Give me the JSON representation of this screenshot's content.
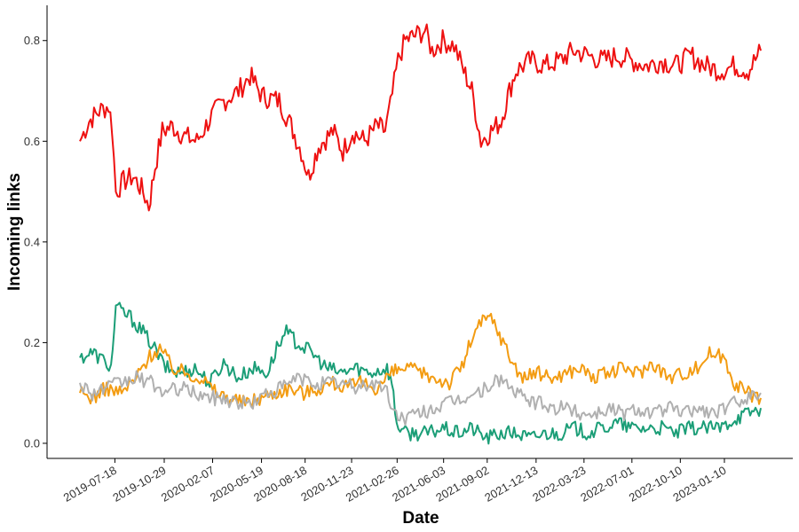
{
  "chart_data": {
    "type": "line",
    "title": "",
    "xlabel": "Date",
    "ylabel": "Incoming links",
    "ylim": [
      -0.03,
      0.87
    ],
    "x_start": "2019-05-06",
    "x_end": "2023-03-27",
    "yticks": [
      0.0,
      0.2,
      0.4,
      0.6,
      0.8
    ],
    "ytick_labels": [
      "0.0",
      "0.2",
      "0.4",
      "0.6",
      "0.8"
    ],
    "xticks": [
      "2019-07-18",
      "2019-10-29",
      "2020-02-07",
      "2020-05-19",
      "2020-08-18",
      "2020-11-23",
      "2021-02-26",
      "2021-06-03",
      "2021-09-02",
      "2021-12-13",
      "2022-03-23",
      "2022-07-01",
      "2022-10-10",
      "2023-01-10"
    ],
    "grid": false,
    "legend": "none",
    "series": [
      {
        "name": "red",
        "color": "#ee1111",
        "points": [
          [
            "2019-05-06",
            0.6
          ],
          [
            "2019-05-25",
            0.64
          ],
          [
            "2019-06-15",
            0.66
          ],
          [
            "2019-07-05",
            0.67
          ],
          [
            "2019-07-12",
            0.63
          ],
          [
            "2019-07-20",
            0.5
          ],
          [
            "2019-08-05",
            0.52
          ],
          [
            "2019-08-25",
            0.53
          ],
          [
            "2019-09-15",
            0.5
          ],
          [
            "2019-09-27",
            0.47
          ],
          [
            "2019-10-10",
            0.55
          ],
          [
            "2019-10-25",
            0.62
          ],
          [
            "2019-11-15",
            0.63
          ],
          [
            "2019-12-10",
            0.61
          ],
          [
            "2020-01-05",
            0.6
          ],
          [
            "2020-02-05",
            0.65
          ],
          [
            "2020-03-01",
            0.68
          ],
          [
            "2020-04-01",
            0.7
          ],
          [
            "2020-04-25",
            0.73
          ],
          [
            "2020-05-20",
            0.69
          ],
          [
            "2020-06-25",
            0.68
          ],
          [
            "2020-07-20",
            0.63
          ],
          [
            "2020-08-10",
            0.58
          ],
          [
            "2020-08-25",
            0.53
          ],
          [
            "2020-09-15",
            0.59
          ],
          [
            "2020-10-15",
            0.62
          ],
          [
            "2020-11-05",
            0.58
          ],
          [
            "2020-11-25",
            0.62
          ],
          [
            "2020-12-20",
            0.6
          ],
          [
            "2021-01-15",
            0.63
          ],
          [
            "2021-02-01",
            0.62
          ],
          [
            "2021-02-12",
            0.67
          ],
          [
            "2021-02-28",
            0.76
          ],
          [
            "2021-03-15",
            0.8
          ],
          [
            "2021-04-05",
            0.81
          ],
          [
            "2021-04-25",
            0.82
          ],
          [
            "2021-05-10",
            0.78
          ],
          [
            "2021-06-01",
            0.8
          ],
          [
            "2021-06-25",
            0.79
          ],
          [
            "2021-07-15",
            0.74
          ],
          [
            "2021-08-01",
            0.7
          ],
          [
            "2021-08-20",
            0.6
          ],
          [
            "2021-09-10",
            0.62
          ],
          [
            "2021-10-01",
            0.64
          ],
          [
            "2021-10-15",
            0.69
          ],
          [
            "2021-11-01",
            0.74
          ],
          [
            "2021-12-01",
            0.76
          ],
          [
            "2022-01-01",
            0.75
          ],
          [
            "2022-02-01",
            0.76
          ],
          [
            "2022-03-01",
            0.78
          ],
          [
            "2022-04-01",
            0.77
          ],
          [
            "2022-05-01",
            0.76
          ],
          [
            "2022-06-01",
            0.77
          ],
          [
            "2022-07-01",
            0.76
          ],
          [
            "2022-08-01",
            0.75
          ],
          [
            "2022-09-01",
            0.76
          ],
          [
            "2022-10-01",
            0.75
          ],
          [
            "2022-11-01",
            0.77
          ],
          [
            "2022-12-01",
            0.75
          ],
          [
            "2023-01-01",
            0.74
          ],
          [
            "2023-02-01",
            0.75
          ],
          [
            "2023-03-01",
            0.74
          ],
          [
            "2023-03-27",
            0.78
          ]
        ]
      },
      {
        "name": "teal",
        "color": "#1b9e77",
        "points": [
          [
            "2019-05-06",
            0.17
          ],
          [
            "2019-06-01",
            0.18
          ],
          [
            "2019-07-01",
            0.16
          ],
          [
            "2019-07-10",
            0.15
          ],
          [
            "2019-07-20",
            0.27
          ],
          [
            "2019-08-20",
            0.25
          ],
          [
            "2019-09-15",
            0.22
          ],
          [
            "2019-10-01",
            0.2
          ],
          [
            "2019-11-01",
            0.15
          ],
          [
            "2019-12-01",
            0.14
          ],
          [
            "2020-01-01",
            0.15
          ],
          [
            "2020-02-01",
            0.12
          ],
          [
            "2020-03-01",
            0.16
          ],
          [
            "2020-04-01",
            0.13
          ],
          [
            "2020-05-01",
            0.15
          ],
          [
            "2020-06-01",
            0.14
          ],
          [
            "2020-06-20",
            0.19
          ],
          [
            "2020-07-10",
            0.22
          ],
          [
            "2020-08-01",
            0.2
          ],
          [
            "2020-09-01",
            0.18
          ],
          [
            "2020-10-01",
            0.15
          ],
          [
            "2020-11-01",
            0.14
          ],
          [
            "2020-12-01",
            0.15
          ],
          [
            "2021-01-01",
            0.14
          ],
          [
            "2021-02-05",
            0.15
          ],
          [
            "2021-02-15",
            0.12
          ],
          [
            "2021-02-25",
            0.04
          ],
          [
            "2021-03-15",
            0.02
          ],
          [
            "2021-04-10",
            0.02
          ],
          [
            "2021-05-01",
            0.02
          ],
          [
            "2021-06-01",
            0.03
          ],
          [
            "2021-07-01",
            0.02
          ],
          [
            "2021-08-01",
            0.03
          ],
          [
            "2021-09-01",
            0.01
          ],
          [
            "2021-10-01",
            0.02
          ],
          [
            "2021-11-01",
            0.02
          ],
          [
            "2021-12-01",
            0.01
          ],
          [
            "2022-01-01",
            0.02
          ],
          [
            "2022-02-01",
            0.02
          ],
          [
            "2022-03-01",
            0.03
          ],
          [
            "2022-04-01",
            0.02
          ],
          [
            "2022-05-01",
            0.03
          ],
          [
            "2022-06-01",
            0.04
          ],
          [
            "2022-07-01",
            0.03
          ],
          [
            "2022-08-01",
            0.03
          ],
          [
            "2022-09-01",
            0.03
          ],
          [
            "2022-10-01",
            0.02
          ],
          [
            "2022-11-01",
            0.03
          ],
          [
            "2022-12-01",
            0.03
          ],
          [
            "2023-01-01",
            0.03
          ],
          [
            "2023-02-01",
            0.05
          ],
          [
            "2023-03-01",
            0.06
          ],
          [
            "2023-03-27",
            0.07
          ]
        ]
      },
      {
        "name": "orange",
        "color": "#f39c12",
        "points": [
          [
            "2019-05-06",
            0.1
          ],
          [
            "2019-06-01",
            0.09
          ],
          [
            "2019-07-01",
            0.11
          ],
          [
            "2019-08-01",
            0.1
          ],
          [
            "2019-09-01",
            0.13
          ],
          [
            "2019-09-25",
            0.17
          ],
          [
            "2019-10-20",
            0.19
          ],
          [
            "2019-11-15",
            0.15
          ],
          [
            "2019-12-15",
            0.14
          ],
          [
            "2020-01-15",
            0.13
          ],
          [
            "2020-02-15",
            0.1
          ],
          [
            "2020-03-15",
            0.09
          ],
          [
            "2020-04-15",
            0.08
          ],
          [
            "2020-05-15",
            0.09
          ],
          [
            "2020-06-15",
            0.1
          ],
          [
            "2020-07-15",
            0.11
          ],
          [
            "2020-08-15",
            0.1
          ],
          [
            "2020-09-15",
            0.11
          ],
          [
            "2020-10-15",
            0.12
          ],
          [
            "2020-11-15",
            0.11
          ],
          [
            "2020-12-15",
            0.12
          ],
          [
            "2021-01-15",
            0.11
          ],
          [
            "2021-02-15",
            0.14
          ],
          [
            "2021-03-15",
            0.15
          ],
          [
            "2021-04-15",
            0.14
          ],
          [
            "2021-05-15",
            0.13
          ],
          [
            "2021-06-15",
            0.12
          ],
          [
            "2021-07-15",
            0.16
          ],
          [
            "2021-08-01",
            0.21
          ],
          [
            "2021-08-20",
            0.24
          ],
          [
            "2021-09-10",
            0.25
          ],
          [
            "2021-10-01",
            0.21
          ],
          [
            "2021-10-20",
            0.17
          ],
          [
            "2021-11-15",
            0.13
          ],
          [
            "2021-12-15",
            0.14
          ],
          [
            "2022-01-15",
            0.13
          ],
          [
            "2022-02-15",
            0.14
          ],
          [
            "2022-03-15",
            0.15
          ],
          [
            "2022-04-15",
            0.13
          ],
          [
            "2022-05-15",
            0.14
          ],
          [
            "2022-06-15",
            0.15
          ],
          [
            "2022-07-15",
            0.14
          ],
          [
            "2022-08-15",
            0.16
          ],
          [
            "2022-09-15",
            0.13
          ],
          [
            "2022-10-15",
            0.14
          ],
          [
            "2022-11-15",
            0.15
          ],
          [
            "2022-12-10",
            0.18
          ],
          [
            "2023-01-10",
            0.17
          ],
          [
            "2023-02-01",
            0.12
          ],
          [
            "2023-03-01",
            0.1
          ],
          [
            "2023-03-27",
            0.09
          ]
        ]
      },
      {
        "name": "gray",
        "color": "#b0b0b0",
        "points": [
          [
            "2019-05-06",
            0.12
          ],
          [
            "2019-06-01",
            0.1
          ],
          [
            "2019-07-01",
            0.11
          ],
          [
            "2019-08-01",
            0.12
          ],
          [
            "2019-09-01",
            0.13
          ],
          [
            "2019-10-01",
            0.12
          ],
          [
            "2019-11-01",
            0.1
          ],
          [
            "2019-12-01",
            0.11
          ],
          [
            "2020-01-01",
            0.1
          ],
          [
            "2020-02-01",
            0.09
          ],
          [
            "2020-03-01",
            0.09
          ],
          [
            "2020-04-01",
            0.08
          ],
          [
            "2020-05-01",
            0.08
          ],
          [
            "2020-06-01",
            0.1
          ],
          [
            "2020-07-01",
            0.11
          ],
          [
            "2020-08-01",
            0.13
          ],
          [
            "2020-09-01",
            0.12
          ],
          [
            "2020-10-01",
            0.12
          ],
          [
            "2020-11-01",
            0.12
          ],
          [
            "2020-12-01",
            0.11
          ],
          [
            "2021-01-01",
            0.12
          ],
          [
            "2021-02-01",
            0.11
          ],
          [
            "2021-02-20",
            0.06
          ],
          [
            "2021-03-15",
            0.05
          ],
          [
            "2021-04-15",
            0.06
          ],
          [
            "2021-05-15",
            0.07
          ],
          [
            "2021-06-15",
            0.08
          ],
          [
            "2021-07-15",
            0.09
          ],
          [
            "2021-08-15",
            0.1
          ],
          [
            "2021-09-15",
            0.12
          ],
          [
            "2021-10-01",
            0.13
          ],
          [
            "2021-10-20",
            0.11
          ],
          [
            "2021-11-15",
            0.09
          ],
          [
            "2021-12-15",
            0.08
          ],
          [
            "2022-01-15",
            0.07
          ],
          [
            "2022-02-15",
            0.07
          ],
          [
            "2022-03-15",
            0.06
          ],
          [
            "2022-04-15",
            0.06
          ],
          [
            "2022-05-15",
            0.07
          ],
          [
            "2022-06-15",
            0.06
          ],
          [
            "2022-07-15",
            0.07
          ],
          [
            "2022-08-15",
            0.06
          ],
          [
            "2022-09-15",
            0.07
          ],
          [
            "2022-10-15",
            0.06
          ],
          [
            "2022-11-15",
            0.07
          ],
          [
            "2022-12-15",
            0.06
          ],
          [
            "2023-01-15",
            0.07
          ],
          [
            "2023-02-15",
            0.09
          ],
          [
            "2023-03-27",
            0.1
          ]
        ]
      }
    ]
  }
}
